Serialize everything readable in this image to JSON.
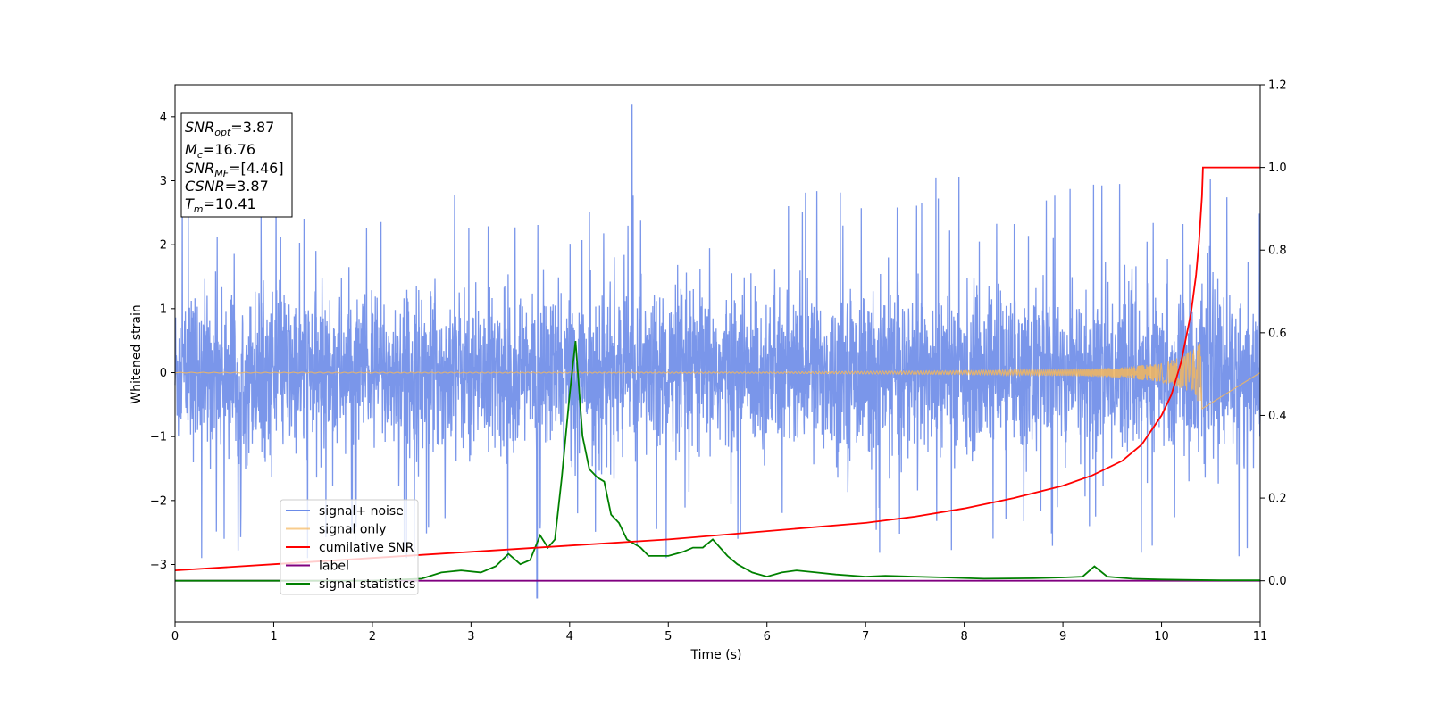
{
  "chart_data": {
    "type": "line",
    "xlabel": "Time (s)",
    "ylabel": "Whitened strain",
    "xlim": [
      0,
      11
    ],
    "ylim_left": [
      -3.9,
      4.5
    ],
    "ylim_right": [
      -0.1,
      1.2
    ],
    "x_ticks": [
      "0",
      "1",
      "2",
      "3",
      "4",
      "5",
      "6",
      "7",
      "8",
      "9",
      "10",
      "11"
    ],
    "y_left_ticks": [
      "−3",
      "−2",
      "−1",
      "0",
      "1",
      "2",
      "3",
      "4"
    ],
    "y_right_ticks": [
      "0.0",
      "0.2",
      "0.4",
      "0.6",
      "0.8",
      "1.0",
      "1.2"
    ],
    "grid": false,
    "legend_position": "lower-left",
    "info_box": [
      {
        "main": "SNR",
        "sub": "opt",
        "rest": "=3.87"
      },
      {
        "main": "M",
        "sub": "c",
        "rest": "=16.76"
      },
      {
        "main": "SNR",
        "sub": "MF",
        "rest": "=[4.46]"
      },
      {
        "main": "CSNR",
        "sub": "",
        "rest": "=3.87"
      },
      {
        "main": "T",
        "sub": "m",
        "rest": "=10.41"
      }
    ],
    "series": [
      {
        "name": "signal+ noise",
        "axis": "left",
        "color": "#6b8be8",
        "description_values": {
          "typical_band": [
            -1.3,
            1.5
          ],
          "spike_max": 4.18,
          "spike_max_time": 4.63,
          "spike_min": -3.52,
          "spike_min_time": 3.67
        }
      },
      {
        "name": "signal only",
        "axis": "left",
        "color": "#f5b75c",
        "amplitude_envelope": {
          "t": [
            0,
            6,
            8,
            9,
            9.6,
            10.0,
            10.2,
            10.35,
            10.41
          ],
          "amp": [
            0.005,
            0.01,
            0.03,
            0.05,
            0.08,
            0.15,
            0.25,
            0.4,
            0.57
          ]
        },
        "end_time": 10.41
      },
      {
        "name": "cumilative SNR",
        "axis": "right",
        "color": "#ff0000",
        "x": [
          0,
          1,
          2,
          3,
          4,
          5,
          6,
          7,
          7.5,
          8,
          8.5,
          9,
          9.3,
          9.6,
          9.8,
          10.0,
          10.1,
          10.2,
          10.3,
          10.35,
          10.38,
          10.41,
          10.42,
          11
        ],
        "y": [
          0.025,
          0.04,
          0.055,
          0.07,
          0.085,
          0.1,
          0.12,
          0.14,
          0.155,
          0.175,
          0.2,
          0.23,
          0.255,
          0.29,
          0.33,
          0.4,
          0.45,
          0.53,
          0.65,
          0.74,
          0.82,
          0.93,
          1.0,
          1.0
        ]
      },
      {
        "name": "label",
        "axis": "right",
        "color": "#800080",
        "x": [
          0,
          11
        ],
        "y": [
          0,
          0
        ]
      },
      {
        "name": "signal statistics",
        "axis": "right",
        "color": "#008000",
        "x": [
          0,
          0.5,
          1,
          1.5,
          2,
          2.5,
          2.7,
          2.9,
          3.1,
          3.25,
          3.38,
          3.5,
          3.6,
          3.7,
          3.78,
          3.85,
          3.92,
          4.0,
          4.06,
          4.13,
          4.2,
          4.28,
          4.35,
          4.42,
          4.5,
          4.58,
          4.65,
          4.72,
          4.8,
          4.9,
          5.0,
          5.15,
          5.25,
          5.35,
          5.45,
          5.6,
          5.7,
          5.85,
          6.0,
          6.15,
          6.3,
          6.5,
          6.7,
          7.0,
          7.2,
          7.5,
          7.8,
          8.2,
          8.7,
          9.0,
          9.2,
          9.32,
          9.45,
          9.7,
          10.0,
          10.3,
          10.6,
          11.0
        ],
        "y": [
          0.0,
          0.0,
          0.0,
          0.0,
          0.0,
          0.005,
          0.02,
          0.025,
          0.02,
          0.035,
          0.065,
          0.04,
          0.05,
          0.11,
          0.08,
          0.1,
          0.25,
          0.45,
          0.58,
          0.35,
          0.27,
          0.25,
          0.24,
          0.16,
          0.14,
          0.1,
          0.09,
          0.08,
          0.06,
          0.06,
          0.06,
          0.07,
          0.08,
          0.08,
          0.1,
          0.06,
          0.04,
          0.02,
          0.01,
          0.02,
          0.025,
          0.02,
          0.015,
          0.01,
          0.012,
          0.01,
          0.008,
          0.005,
          0.006,
          0.008,
          0.01,
          0.035,
          0.01,
          0.005,
          0.003,
          0.002,
          0.001,
          0.001
        ]
      }
    ]
  }
}
